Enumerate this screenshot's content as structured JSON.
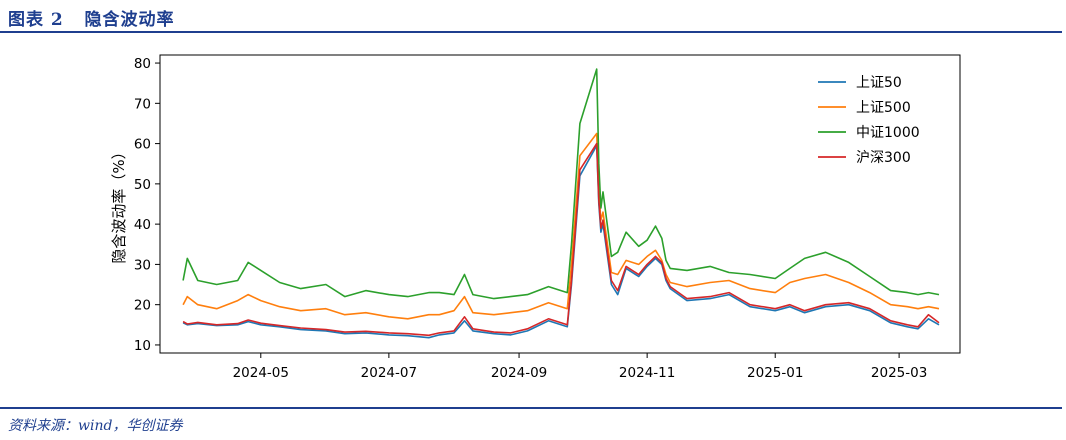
{
  "header": {
    "figure_title": "图表 2   隐含波动率"
  },
  "footer": {
    "source": "资料来源：wind，华创证券"
  },
  "colors": {
    "brand": "#1f3f8f"
  },
  "chart_data": {
    "type": "line",
    "title": "",
    "xlabel": "",
    "ylabel": "隐含波动率（%）",
    "ylim": [
      8,
      82
    ],
    "xlim": [
      "2024-03-14",
      "2025-03-30"
    ],
    "yticks": [
      10,
      20,
      30,
      40,
      50,
      60,
      70,
      80
    ],
    "xticks": [
      "2024-05",
      "2024-07",
      "2024-09",
      "2024-11",
      "2025-01",
      "2025-03"
    ],
    "grid": false,
    "legend_position": "top-right",
    "series": [
      {
        "name": "上证50",
        "color": "#1f77b4",
        "points": [
          [
            "2024-03-25",
            15.5
          ],
          [
            "2024-03-27",
            15.0
          ],
          [
            "2024-04-01",
            15.3
          ],
          [
            "2024-04-10",
            14.8
          ],
          [
            "2024-04-20",
            15.0
          ],
          [
            "2024-04-25",
            15.8
          ],
          [
            "2024-05-01",
            15.0
          ],
          [
            "2024-05-10",
            14.5
          ],
          [
            "2024-05-20",
            13.8
          ],
          [
            "2024-06-01",
            13.5
          ],
          [
            "2024-06-10",
            12.8
          ],
          [
            "2024-06-20",
            13.0
          ],
          [
            "2024-07-01",
            12.5
          ],
          [
            "2024-07-10",
            12.3
          ],
          [
            "2024-07-20",
            11.8
          ],
          [
            "2024-07-25",
            12.5
          ],
          [
            "2024-08-01",
            13.0
          ],
          [
            "2024-08-06",
            16.0
          ],
          [
            "2024-08-10",
            13.5
          ],
          [
            "2024-08-20",
            12.8
          ],
          [
            "2024-08-28",
            12.5
          ],
          [
            "2024-09-05",
            13.5
          ],
          [
            "2024-09-15",
            16.0
          ],
          [
            "2024-09-24",
            14.5
          ],
          [
            "2024-09-26",
            25.0
          ],
          [
            "2024-09-30",
            52.0
          ],
          [
            "2024-10-08",
            59.5
          ],
          [
            "2024-10-09",
            45.0
          ],
          [
            "2024-10-10",
            38.0
          ],
          [
            "2024-10-11",
            40.0
          ],
          [
            "2024-10-15",
            25.0
          ],
          [
            "2024-10-18",
            22.5
          ],
          [
            "2024-10-22",
            29.0
          ],
          [
            "2024-10-28",
            27.0
          ],
          [
            "2024-11-01",
            29.5
          ],
          [
            "2024-11-05",
            31.5
          ],
          [
            "2024-11-08",
            30.0
          ],
          [
            "2024-11-10",
            26.0
          ],
          [
            "2024-11-12",
            24.0
          ],
          [
            "2024-11-20",
            21.0
          ],
          [
            "2024-12-01",
            21.5
          ],
          [
            "2024-12-10",
            22.5
          ],
          [
            "2024-12-20",
            19.5
          ],
          [
            "2025-01-01",
            18.5
          ],
          [
            "2025-01-08",
            19.5
          ],
          [
            "2025-01-15",
            18.0
          ],
          [
            "2025-01-25",
            19.5
          ],
          [
            "2025-02-05",
            20.0
          ],
          [
            "2025-02-15",
            18.5
          ],
          [
            "2025-02-25",
            15.5
          ],
          [
            "2025-03-05",
            14.5
          ],
          [
            "2025-03-10",
            14.0
          ],
          [
            "2025-03-15",
            16.5
          ],
          [
            "2025-03-20",
            15.0
          ]
        ]
      },
      {
        "name": "上证500",
        "color": "#ff7f0e",
        "points": [
          [
            "2024-03-25",
            20.0
          ],
          [
            "2024-03-27",
            22.0
          ],
          [
            "2024-04-01",
            20.0
          ],
          [
            "2024-04-10",
            19.0
          ],
          [
            "2024-04-20",
            21.0
          ],
          [
            "2024-04-25",
            22.5
          ],
          [
            "2024-05-01",
            21.0
          ],
          [
            "2024-05-10",
            19.5
          ],
          [
            "2024-05-20",
            18.5
          ],
          [
            "2024-06-01",
            19.0
          ],
          [
            "2024-06-10",
            17.5
          ],
          [
            "2024-06-20",
            18.0
          ],
          [
            "2024-07-01",
            17.0
          ],
          [
            "2024-07-10",
            16.5
          ],
          [
            "2024-07-20",
            17.5
          ],
          [
            "2024-07-25",
            17.5
          ],
          [
            "2024-08-01",
            18.5
          ],
          [
            "2024-08-06",
            22.0
          ],
          [
            "2024-08-10",
            18.0
          ],
          [
            "2024-08-20",
            17.5
          ],
          [
            "2024-08-28",
            18.0
          ],
          [
            "2024-09-05",
            18.5
          ],
          [
            "2024-09-15",
            20.5
          ],
          [
            "2024-09-24",
            19.0
          ],
          [
            "2024-09-26",
            30.0
          ],
          [
            "2024-09-30",
            57.0
          ],
          [
            "2024-10-08",
            62.5
          ],
          [
            "2024-10-09",
            48.0
          ],
          [
            "2024-10-10",
            41.0
          ],
          [
            "2024-10-11",
            43.0
          ],
          [
            "2024-10-15",
            28.0
          ],
          [
            "2024-10-18",
            27.5
          ],
          [
            "2024-10-22",
            31.0
          ],
          [
            "2024-10-28",
            30.0
          ],
          [
            "2024-11-01",
            32.0
          ],
          [
            "2024-11-05",
            33.5
          ],
          [
            "2024-11-08",
            31.0
          ],
          [
            "2024-11-10",
            27.5
          ],
          [
            "2024-11-12",
            25.5
          ],
          [
            "2024-11-20",
            24.5
          ],
          [
            "2024-12-01",
            25.5
          ],
          [
            "2024-12-10",
            26.0
          ],
          [
            "2024-12-20",
            24.0
          ],
          [
            "2025-01-01",
            23.0
          ],
          [
            "2025-01-08",
            25.5
          ],
          [
            "2025-01-15",
            26.5
          ],
          [
            "2025-01-25",
            27.5
          ],
          [
            "2025-02-05",
            25.5
          ],
          [
            "2025-02-15",
            23.0
          ],
          [
            "2025-02-25",
            20.0
          ],
          [
            "2025-03-05",
            19.5
          ],
          [
            "2025-03-10",
            19.0
          ],
          [
            "2025-03-15",
            19.5
          ],
          [
            "2025-03-20",
            19.0
          ]
        ]
      },
      {
        "name": "中证1000",
        "color": "#2ca02c",
        "points": [
          [
            "2024-03-25",
            26.0
          ],
          [
            "2024-03-27",
            31.5
          ],
          [
            "2024-04-01",
            26.0
          ],
          [
            "2024-04-10",
            25.0
          ],
          [
            "2024-04-20",
            26.0
          ],
          [
            "2024-04-25",
            30.5
          ],
          [
            "2024-05-01",
            28.5
          ],
          [
            "2024-05-10",
            25.5
          ],
          [
            "2024-05-20",
            24.0
          ],
          [
            "2024-06-01",
            25.0
          ],
          [
            "2024-06-10",
            22.0
          ],
          [
            "2024-06-20",
            23.5
          ],
          [
            "2024-07-01",
            22.5
          ],
          [
            "2024-07-10",
            22.0
          ],
          [
            "2024-07-20",
            23.0
          ],
          [
            "2024-07-25",
            23.0
          ],
          [
            "2024-08-01",
            22.5
          ],
          [
            "2024-08-06",
            27.5
          ],
          [
            "2024-08-10",
            22.5
          ],
          [
            "2024-08-20",
            21.5
          ],
          [
            "2024-08-28",
            22.0
          ],
          [
            "2024-09-05",
            22.5
          ],
          [
            "2024-09-15",
            24.5
          ],
          [
            "2024-09-24",
            23.0
          ],
          [
            "2024-09-26",
            35.0
          ],
          [
            "2024-09-30",
            65.0
          ],
          [
            "2024-10-08",
            78.5
          ],
          [
            "2024-10-09",
            55.0
          ],
          [
            "2024-10-10",
            44.0
          ],
          [
            "2024-10-11",
            48.0
          ],
          [
            "2024-10-15",
            32.0
          ],
          [
            "2024-10-18",
            33.0
          ],
          [
            "2024-10-22",
            38.0
          ],
          [
            "2024-10-28",
            34.5
          ],
          [
            "2024-11-01",
            36.0
          ],
          [
            "2024-11-05",
            39.5
          ],
          [
            "2024-11-08",
            36.5
          ],
          [
            "2024-11-10",
            31.0
          ],
          [
            "2024-11-12",
            29.0
          ],
          [
            "2024-11-20",
            28.5
          ],
          [
            "2024-12-01",
            29.5
          ],
          [
            "2024-12-10",
            28.0
          ],
          [
            "2024-12-20",
            27.5
          ],
          [
            "2025-01-01",
            26.5
          ],
          [
            "2025-01-08",
            29.0
          ],
          [
            "2025-01-15",
            31.5
          ],
          [
            "2025-01-25",
            33.0
          ],
          [
            "2025-02-05",
            30.5
          ],
          [
            "2025-02-15",
            27.0
          ],
          [
            "2025-02-25",
            23.5
          ],
          [
            "2025-03-05",
            23.0
          ],
          [
            "2025-03-10",
            22.5
          ],
          [
            "2025-03-15",
            23.0
          ],
          [
            "2025-03-20",
            22.5
          ]
        ]
      },
      {
        "name": "沪深300",
        "color": "#d62728",
        "points": [
          [
            "2024-03-25",
            15.8
          ],
          [
            "2024-03-27",
            15.2
          ],
          [
            "2024-04-01",
            15.6
          ],
          [
            "2024-04-10",
            15.0
          ],
          [
            "2024-04-20",
            15.3
          ],
          [
            "2024-04-25",
            16.2
          ],
          [
            "2024-05-01",
            15.4
          ],
          [
            "2024-05-10",
            14.8
          ],
          [
            "2024-05-20",
            14.2
          ],
          [
            "2024-06-01",
            13.8
          ],
          [
            "2024-06-10",
            13.2
          ],
          [
            "2024-06-20",
            13.4
          ],
          [
            "2024-07-01",
            13.0
          ],
          [
            "2024-07-10",
            12.8
          ],
          [
            "2024-07-20",
            12.4
          ],
          [
            "2024-07-25",
            13.0
          ],
          [
            "2024-08-01",
            13.5
          ],
          [
            "2024-08-06",
            17.0
          ],
          [
            "2024-08-10",
            14.0
          ],
          [
            "2024-08-20",
            13.2
          ],
          [
            "2024-08-28",
            13.0
          ],
          [
            "2024-09-05",
            14.0
          ],
          [
            "2024-09-15",
            16.5
          ],
          [
            "2024-09-24",
            15.0
          ],
          [
            "2024-09-26",
            26.0
          ],
          [
            "2024-09-30",
            53.5
          ],
          [
            "2024-10-08",
            60.0
          ],
          [
            "2024-10-09",
            46.0
          ],
          [
            "2024-10-10",
            39.0
          ],
          [
            "2024-10-11",
            41.0
          ],
          [
            "2024-10-15",
            26.0
          ],
          [
            "2024-10-18",
            23.5
          ],
          [
            "2024-10-22",
            29.5
          ],
          [
            "2024-10-28",
            27.5
          ],
          [
            "2024-11-01",
            30.0
          ],
          [
            "2024-11-05",
            32.0
          ],
          [
            "2024-11-08",
            30.5
          ],
          [
            "2024-11-10",
            26.5
          ],
          [
            "2024-11-12",
            24.5
          ],
          [
            "2024-11-20",
            21.5
          ],
          [
            "2024-12-01",
            22.0
          ],
          [
            "2024-12-10",
            23.0
          ],
          [
            "2024-12-20",
            20.0
          ],
          [
            "2025-01-01",
            19.0
          ],
          [
            "2025-01-08",
            20.0
          ],
          [
            "2025-01-15",
            18.5
          ],
          [
            "2025-01-25",
            20.0
          ],
          [
            "2025-02-05",
            20.5
          ],
          [
            "2025-02-15",
            19.0
          ],
          [
            "2025-02-25",
            16.0
          ],
          [
            "2025-03-05",
            15.0
          ],
          [
            "2025-03-10",
            14.5
          ],
          [
            "2025-03-15",
            17.5
          ],
          [
            "2025-03-20",
            15.5
          ]
        ]
      }
    ]
  }
}
